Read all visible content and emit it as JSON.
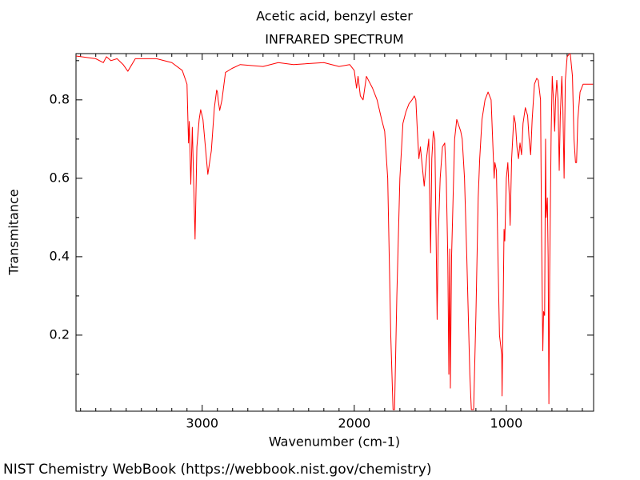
{
  "chart_data": {
    "type": "line",
    "title": "Acetic acid, benzyl ester",
    "subtitle": "INFRARED SPECTRUM",
    "x_label": "Wavenumber (cm-1)",
    "y_label": "Transmitance",
    "footer": "NIST Chemistry WebBook (https://webbook.nist.gov/chemistry)",
    "color": "#ff0000",
    "xlim": [
      3830,
      426
    ],
    "ylim": [
      0.006,
      0.918
    ],
    "xticks": [
      3000,
      2000,
      1000
    ],
    "yticks": [
      0.2,
      0.4,
      0.6,
      0.8
    ],
    "x_minor_ticks": [
      3800,
      3700,
      3600,
      3500,
      3400,
      3300,
      3200,
      3100,
      2900,
      2800,
      2700,
      2600,
      2500,
      2400,
      2300,
      2200,
      2100,
      1900,
      1800,
      1700,
      1600,
      1500,
      1400,
      1300,
      1200,
      1100,
      900,
      800,
      700,
      600,
      500
    ],
    "y_minor_ticks": [
      0.1,
      0.3,
      0.5,
      0.7,
      0.9
    ],
    "x": [
      3830,
      3700,
      3650,
      3630,
      3600,
      3560,
      3520,
      3489,
      3440,
      3300,
      3200,
      3131,
      3100,
      3090,
      3085,
      3075,
      3065,
      3047,
      3035,
      3020,
      3010,
      2995,
      2970,
      2963,
      2940,
      2920,
      2905,
      2900,
      2895,
      2885,
      2870,
      2847,
      2805,
      2750,
      2600,
      2500,
      2400,
      2200,
      2100,
      2030,
      2000,
      1985,
      1975,
      1960,
      1942,
      1920,
      1880,
      1850,
      1820,
      1800,
      1780,
      1760,
      1745,
      1735,
      1720,
      1700,
      1680,
      1660,
      1640,
      1620,
      1605,
      1595,
      1585,
      1575,
      1565,
      1550,
      1540,
      1525,
      1510,
      1498,
      1490,
      1480,
      1470,
      1455,
      1448,
      1435,
      1420,
      1405,
      1395,
      1385,
      1378,
      1372,
      1368,
      1360,
      1340,
      1326,
      1300,
      1290,
      1275,
      1260,
      1240,
      1230,
      1215,
      1200,
      1185,
      1175,
      1160,
      1140,
      1120,
      1100,
      1085,
      1080,
      1075,
      1065,
      1055,
      1045,
      1030,
      1028,
      1020,
      1015,
      1010,
      1000,
      990,
      980,
      975,
      965,
      950,
      940,
      930,
      920,
      910,
      900,
      890,
      875,
      860,
      850,
      840,
      830,
      815,
      800,
      790,
      775,
      768,
      760,
      755,
      748,
      742,
      738,
      730,
      725,
      720,
      715,
      705,
      698,
      690,
      682,
      676,
      668,
      660,
      652,
      645,
      635,
      628,
      620,
      612,
      600,
      580,
      565,
      555,
      545,
      538,
      530,
      515,
      495,
      430
    ],
    "values": [
      0.912,
      0.905,
      0.895,
      0.91,
      0.9,
      0.905,
      0.89,
      0.873,
      0.905,
      0.905,
      0.895,
      0.875,
      0.84,
      0.69,
      0.745,
      0.585,
      0.73,
      0.445,
      0.68,
      0.75,
      0.775,
      0.75,
      0.64,
      0.61,
      0.67,
      0.78,
      0.825,
      0.82,
      0.8,
      0.773,
      0.8,
      0.87,
      0.88,
      0.89,
      0.885,
      0.895,
      0.89,
      0.895,
      0.885,
      0.89,
      0.875,
      0.83,
      0.86,
      0.81,
      0.8,
      0.86,
      0.83,
      0.8,
      0.75,
      0.72,
      0.6,
      0.2,
      0.01,
      0.01,
      0.3,
      0.6,
      0.74,
      0.77,
      0.79,
      0.8,
      0.81,
      0.8,
      0.72,
      0.65,
      0.68,
      0.62,
      0.58,
      0.65,
      0.7,
      0.41,
      0.65,
      0.72,
      0.7,
      0.24,
      0.45,
      0.6,
      0.68,
      0.69,
      0.6,
      0.4,
      0.1,
      0.42,
      0.065,
      0.4,
      0.7,
      0.75,
      0.72,
      0.7,
      0.6,
      0.4,
      0.1,
      0.01,
      0.01,
      0.25,
      0.55,
      0.65,
      0.75,
      0.8,
      0.82,
      0.8,
      0.65,
      0.6,
      0.64,
      0.62,
      0.4,
      0.2,
      0.15,
      0.045,
      0.3,
      0.47,
      0.44,
      0.6,
      0.64,
      0.55,
      0.48,
      0.65,
      0.76,
      0.74,
      0.68,
      0.65,
      0.69,
      0.66,
      0.74,
      0.78,
      0.76,
      0.7,
      0.66,
      0.75,
      0.84,
      0.855,
      0.85,
      0.8,
      0.45,
      0.16,
      0.26,
      0.25,
      0.7,
      0.5,
      0.55,
      0.4,
      0.025,
      0.35,
      0.72,
      0.86,
      0.8,
      0.72,
      0.8,
      0.85,
      0.8,
      0.62,
      0.76,
      0.86,
      0.78,
      0.6,
      0.85,
      0.91,
      0.92,
      0.86,
      0.7,
      0.64,
      0.64,
      0.75,
      0.82,
      0.84,
      0.84
    ]
  }
}
